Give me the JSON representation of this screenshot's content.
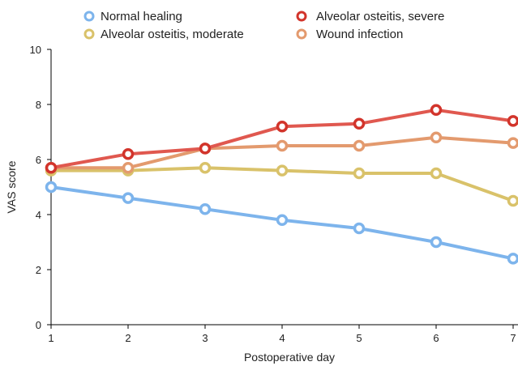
{
  "chart_data": {
    "type": "line",
    "title": "",
    "xlabel": "Postoperative day",
    "ylabel": "VAS score",
    "x": [
      1,
      2,
      3,
      4,
      5,
      6,
      7
    ],
    "xticks": [
      "1",
      "2",
      "3",
      "4",
      "5",
      "6",
      "7"
    ],
    "ylim": [
      0,
      10
    ],
    "yticks": [
      "0",
      "2",
      "4",
      "6",
      "8",
      "10"
    ],
    "grid": false,
    "legend_position": "top",
    "series": [
      {
        "name": "Normal healing",
        "color": "#7db4ec",
        "values": [
          5.0,
          4.6,
          4.2,
          3.8,
          3.5,
          3.0,
          2.4
        ]
      },
      {
        "name": "Alveolar osteitis, severe",
        "color": "#d2342b",
        "line_color": "#e0584f",
        "values": [
          5.7,
          6.2,
          6.4,
          7.2,
          7.3,
          7.8,
          7.4
        ]
      },
      {
        "name": "Alveolar osteitis, moderate",
        "color": "#d9c26a",
        "values": [
          5.6,
          5.6,
          5.7,
          5.6,
          5.5,
          5.5,
          4.5
        ]
      },
      {
        "name": "Wound infection",
        "color": "#e39a6e",
        "values": [
          5.7,
          5.7,
          6.4,
          6.5,
          6.5,
          6.8,
          6.6
        ]
      }
    ]
  }
}
